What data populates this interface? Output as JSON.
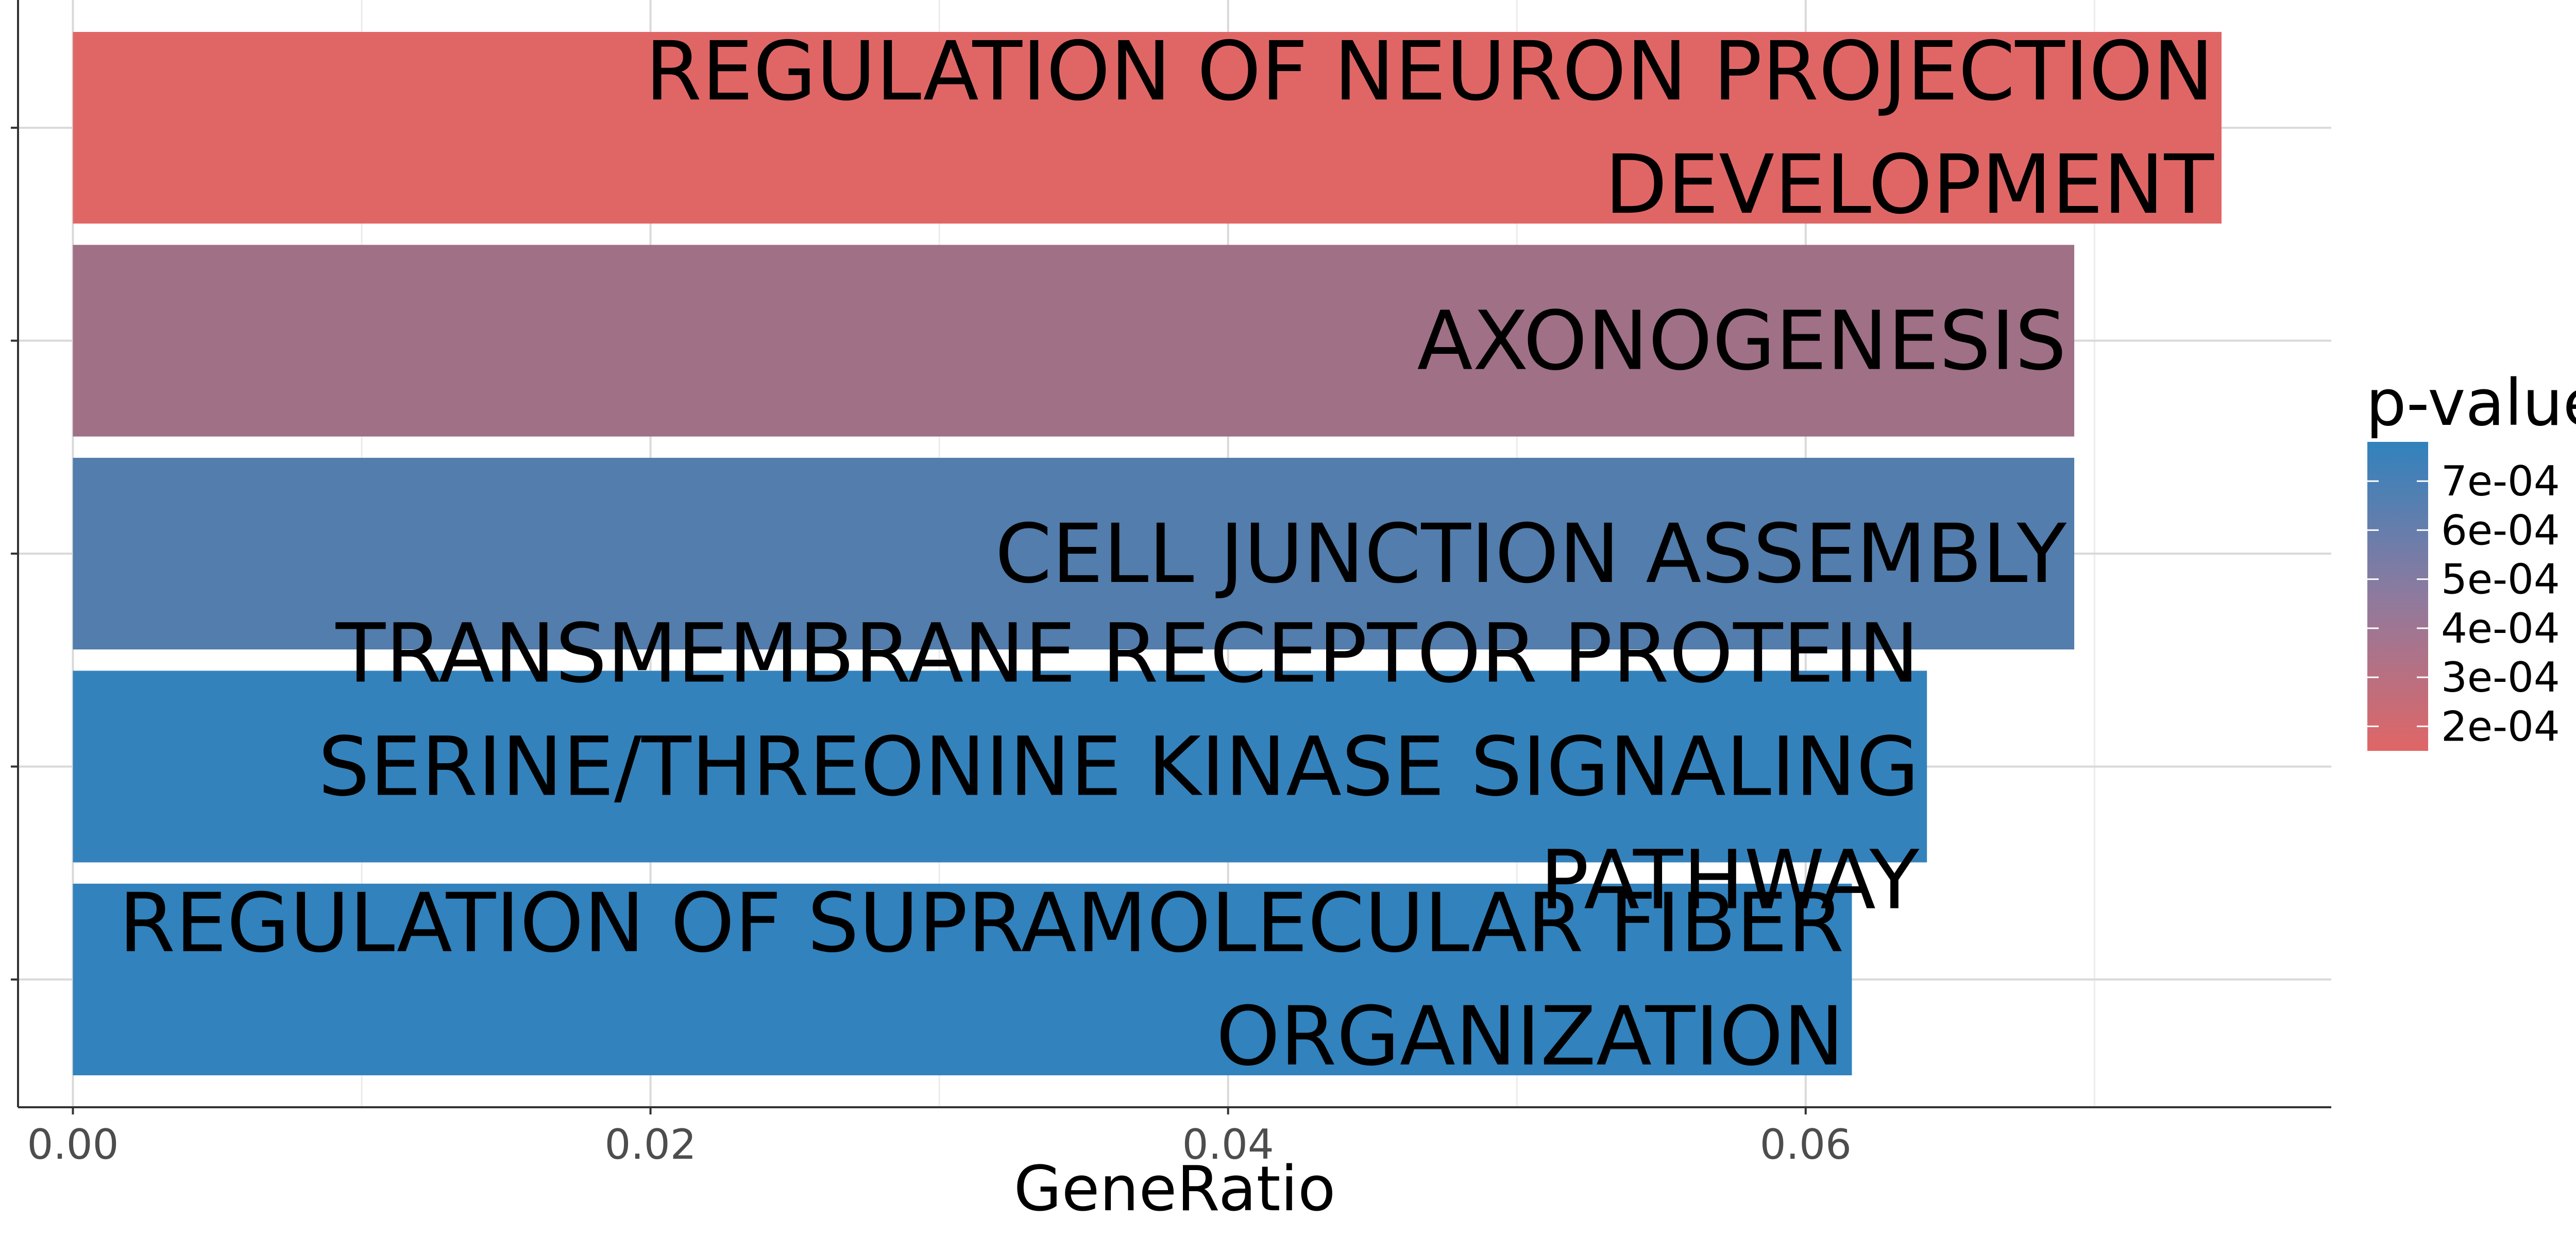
{
  "chart_data": {
    "type": "bar",
    "orientation": "horizontal",
    "xlabel": "GeneRatio",
    "ylabel": "",
    "xlim": [
      -0.0019,
      0.0782
    ],
    "x_ticks": [
      0.0,
      0.02,
      0.04,
      0.06
    ],
    "x_tick_labels": [
      "0.00",
      "0.02",
      "0.04",
      "0.06"
    ],
    "grid": true,
    "categories": [
      [
        "REGULATION OF NEURON PROJECTION",
        "DEVELOPMENT"
      ],
      [
        "AXONOGENESIS"
      ],
      [
        "CELL JUNCTION ASSEMBLY"
      ],
      [
        "TRANSMEMBRANE RECEPTOR PROTEIN",
        "SERINE/THREONINE KINASE SIGNALING",
        "PATHWAY"
      ],
      [
        "REGULATION OF SUPRAMOLECULAR FIBER",
        "ORGANIZATION"
      ]
    ],
    "values": [
      0.0744,
      0.0693,
      0.0693,
      0.0642,
      0.0616
    ],
    "p_values": [
      0.00015,
      0.00038,
      0.00066,
      0.00077,
      0.00078
    ],
    "legend": {
      "title": "p-value",
      "position": "right",
      "breaks": [
        0.0007,
        0.0006,
        0.0005,
        0.0004,
        0.0003,
        0.0002
      ],
      "labels": [
        "7e-04",
        "6e-04",
        "5e-04",
        "4e-04",
        "3e-04",
        "2e-04"
      ],
      "range": [
        0.00015,
        0.00078
      ]
    },
    "colors": {
      "low": "#e06666",
      "high": "#3182bd"
    }
  }
}
